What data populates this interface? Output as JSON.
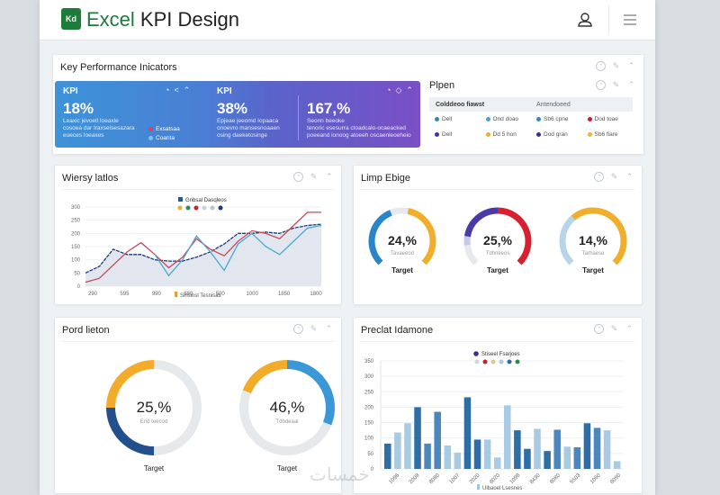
{
  "header": {
    "logo_text": "Kd",
    "title_prefix": "Excel",
    "title_rest": " KPI Design",
    "user_icon": "user-icon",
    "menu_icon": "hamburger-menu-icon"
  },
  "card_icons": [
    "gauge-icon",
    "pin-icon",
    "expand-icon"
  ],
  "kpi_section": {
    "title": "Key Performance Inicators",
    "blocks": [
      {
        "label": "KPI",
        "value": "18%",
        "desc": [
          "Leaxic jevoell Ioeaxle",
          "cosoea dar Iraxseisesazara",
          "eueces Ioeaxes"
        ],
        "legend": [
          {
            "label": "Exsatsaa",
            "color": "#e0405a"
          },
          {
            "label": "Coanta",
            "color": "#7ac3f0"
          }
        ]
      },
      {
        "label": "KPI",
        "value": "38%",
        "desc": [
          "Epjeae jeeomd Iopaaca",
          "onoevro mansesnoaaen",
          "osing daeketosinge"
        ]
      },
      {
        "label": "",
        "value": "167,%",
        "desc": [
          "Seonn beeoke",
          "tenoric esesurra ctoadcalo-ocaeacked",
          "poeeand ionoog atoeeh oscaenleoeheio"
        ]
      }
    ]
  },
  "plan_card": {
    "title": "Plpen",
    "headers": [
      "Colddeoo fiawst",
      "Antendoeed"
    ],
    "rows": [
      [
        {
          "label": "Dell",
          "color": "#3a86b8"
        },
        {
          "label": "Ond doao",
          "color": "#4a9fd0"
        },
        {
          "label": "Sb6 cpne",
          "color": "#3a86b8"
        },
        {
          "label": "Dod toae",
          "color": "#c8202c"
        }
      ],
      [
        {
          "label": "Dell",
          "color": "#4a2fa6"
        },
        {
          "label": "Dd 5 hon",
          "color": "#e8b030"
        },
        {
          "label": "Dod gran",
          "color": "#3a2f96"
        },
        {
          "label": "Sb6 fiare",
          "color": "#e8b830"
        }
      ]
    ]
  },
  "line_card": {
    "title": "Wiersy latlos",
    "chart_data": {
      "type": "line",
      "title": "",
      "legend_title": "Gnbsal Dasqleos",
      "legend_dots": [
        "#e8b030",
        "#2e8a5a",
        "#c8202c",
        "#c9d3dc",
        "#b8c6d2",
        "#1f3a78"
      ],
      "bottom_legend": "Sinsinsl Tesnisas",
      "xlabel": "",
      "ylabel": "",
      "y_ticks": [
        "0",
        "50",
        "100",
        "150",
        "200",
        "250",
        "300"
      ],
      "ylim": [
        0,
        300
      ],
      "x_ticks": [
        "290",
        "595",
        "990",
        "880",
        "500",
        "1000",
        "1850",
        "1800"
      ],
      "x": [
        0,
        1,
        2,
        3,
        4,
        5,
        6,
        7,
        8,
        9,
        10,
        11,
        12,
        13,
        14,
        15,
        16,
        17
      ],
      "series": [
        {
          "name": "Navy (area)",
          "color": "#1f3a78",
          "values": [
            50,
            75,
            140,
            120,
            120,
            100,
            95,
            95,
            110,
            130,
            160,
            200,
            200,
            205,
            200,
            220,
            230,
            235
          ]
        },
        {
          "name": "Red",
          "color": "#c8485a",
          "values": [
            15,
            30,
            80,
            130,
            165,
            120,
            70,
            110,
            180,
            140,
            115,
            170,
            210,
            200,
            180,
            230,
            280,
            280
          ]
        },
        {
          "name": "Cyan",
          "color": "#4aa8d0",
          "values": [
            null,
            null,
            null,
            null,
            null,
            120,
            40,
            100,
            190,
            130,
            60,
            160,
            200,
            150,
            120,
            170,
            220,
            230
          ]
        }
      ]
    }
  },
  "gauge_card": {
    "title": "Limp Ebige",
    "gauges": [
      {
        "value": "24,%",
        "sub": "Tavaeeod",
        "label": "Target",
        "segments": [
          {
            "color": "#2a84c8",
            "frac": 0.42
          },
          {
            "color": "#e6e9ec",
            "frac": 0.12
          },
          {
            "color": "#f0ae2a",
            "frac": 0.46
          }
        ]
      },
      {
        "value": "25,%",
        "sub": "Tdhneeos",
        "label": "Target",
        "segments": [
          {
            "color": "#e6e9ec",
            "frac": 0.14
          },
          {
            "color": "#c6c8ee",
            "frac": 0.06
          },
          {
            "color": "#4a3aa8",
            "frac": 0.3
          },
          {
            "color": "#d8202e",
            "frac": 0.5
          }
        ]
      },
      {
        "value": "14,%",
        "sub": "Tarhaese",
        "label": "Target",
        "segments": [
          {
            "color": "#b8d4e8",
            "frac": 0.35
          },
          {
            "color": "#f0ae2a",
            "frac": 0.65
          }
        ]
      }
    ]
  },
  "donut_card": {
    "title": "Pord lieton",
    "donuts": [
      {
        "value": "25,%",
        "sub": "Erid teecod",
        "label": "Target",
        "segments": [
          {
            "color": "#e6e9ec",
            "frac": 0.5
          },
          {
            "color": "#234f8f",
            "frac": 0.25
          },
          {
            "color": "#f2ac2a",
            "frac": 0.25
          }
        ]
      },
      {
        "value": "46,%",
        "sub": "Tdhdeaal",
        "label": "Target",
        "segments": [
          {
            "color": "#3b98d8",
            "frac": 0.31
          },
          {
            "color": "#e6e9ec",
            "frac": 0.5
          },
          {
            "color": "#f2ac2a",
            "frac": 0.19
          }
        ]
      }
    ]
  },
  "bar_card": {
    "title": "Preclat Idamone",
    "chart_data": {
      "type": "bar",
      "title": "",
      "legend_title": "Stiseel Fsarjoes",
      "legend_title_color": "#3a2f96",
      "legend_dots": [
        "#cfd8e0",
        "#c8202c",
        "#e0c88a",
        "#a9c8e0",
        "#2a6ea8",
        "#2e8a4a"
      ],
      "bottom_legend": "Ulbaoel Lsesnes",
      "y_ticks": [
        "0",
        "50",
        "100",
        "150",
        "200",
        "250",
        "300",
        "350"
      ],
      "ylim": [
        0,
        350
      ],
      "x_ticks": [
        "1096",
        "2008",
        "8080",
        "1007",
        "2020",
        "8020",
        "1098",
        "8430",
        "8080",
        "5503",
        "1060",
        "8090"
      ],
      "values": [
        82,
        118,
        148,
        200,
        82,
        185,
        76,
        53,
        232,
        95,
        95,
        37,
        206,
        125,
        65,
        130,
        58,
        127,
        72,
        70,
        148,
        133,
        125,
        25
      ],
      "colors": [
        "#2e6ea6",
        "#a9cae3",
        "#a9cae3",
        "#2e6ea6",
        "#4d86bc",
        "#4d86bc",
        "#a9cae3",
        "#a9cae3",
        "#2e6ea6",
        "#2e6ea6",
        "#a9cae3",
        "#a9cae3",
        "#a9cae3",
        "#2e6ea6",
        "#2e6ea6",
        "#a9cae3",
        "#2e6ea6",
        "#4d86bc",
        "#a9cae3",
        "#4d86bc",
        "#2e6ea6",
        "#4d86bc",
        "#a9cae3",
        "#a9cae3"
      ]
    }
  },
  "watermark": "خمسات"
}
